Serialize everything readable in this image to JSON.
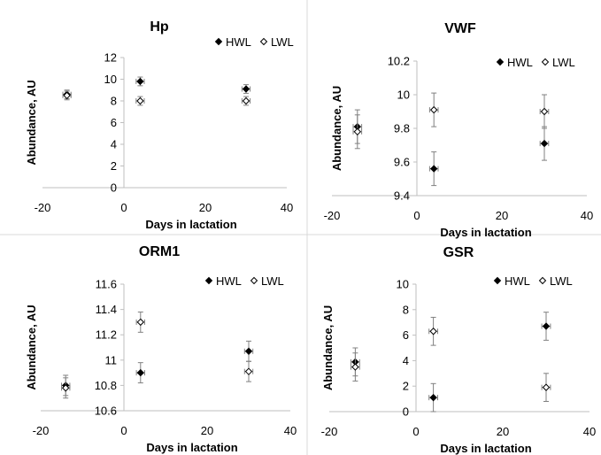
{
  "chart_data": [
    {
      "type": "scatter",
      "title": "Hp",
      "xlabel": "Days in lactation",
      "ylabel": "Abundance, AU",
      "xlim": [
        -20,
        40
      ],
      "ylim": [
        0,
        12
      ],
      "xticks": [
        -20,
        0,
        20,
        40
      ],
      "yticks": [
        0,
        2,
        4,
        6,
        8,
        10,
        12
      ],
      "ytick_labels": [
        "0",
        "2",
        "4",
        "6",
        "8",
        "10",
        "12"
      ],
      "grid": false,
      "legend": "top-right",
      "series": [
        {
          "name": "HWL",
          "marker": "filled-diamond",
          "points": [
            {
              "x": -14,
              "y": 8.6,
              "xerr": 1,
              "yerr": 0.4
            },
            {
              "x": 4,
              "y": 9.8,
              "xerr": 1,
              "yerr": 0.4
            },
            {
              "x": 30,
              "y": 9.1,
              "xerr": 1,
              "yerr": 0.4
            }
          ]
        },
        {
          "name": "LWL",
          "marker": "open-diamond",
          "points": [
            {
              "x": -14,
              "y": 8.5,
              "xerr": 1,
              "yerr": 0.4
            },
            {
              "x": 4,
              "y": 8.0,
              "xerr": 1,
              "yerr": 0.4
            },
            {
              "x": 30,
              "y": 8.0,
              "xerr": 1,
              "yerr": 0.4
            }
          ]
        }
      ]
    },
    {
      "type": "scatter",
      "title": "VWF",
      "xlabel": "Days in lactation",
      "ylabel": "Abundance, AU",
      "xlim": [
        -20,
        40
      ],
      "ylim": [
        9.4,
        10.2
      ],
      "xticks": [
        -20,
        0,
        20,
        40
      ],
      "yticks": [
        9.4,
        9.6,
        9.8,
        10,
        10.2
      ],
      "ytick_labels": [
        "9.4",
        "9.6",
        "9.8",
        "10",
        "10.2"
      ],
      "grid": false,
      "legend": "top-right",
      "series": [
        {
          "name": "HWL",
          "marker": "filled-diamond",
          "points": [
            {
              "x": -14,
              "y": 9.81,
              "xerr": 1,
              "yerr": 0.1
            },
            {
              "x": 4,
              "y": 9.56,
              "xerr": 1,
              "yerr": 0.1
            },
            {
              "x": 30,
              "y": 9.71,
              "xerr": 1,
              "yerr": 0.1
            }
          ]
        },
        {
          "name": "LWL",
          "marker": "open-diamond",
          "points": [
            {
              "x": -14,
              "y": 9.78,
              "xerr": 1,
              "yerr": 0.1
            },
            {
              "x": 4,
              "y": 9.91,
              "xerr": 1,
              "yerr": 0.1
            },
            {
              "x": 30,
              "y": 9.9,
              "xerr": 1,
              "yerr": 0.1
            }
          ]
        }
      ]
    },
    {
      "type": "scatter",
      "title": "ORM1",
      "xlabel": "Days in lactation",
      "ylabel": "Abundance, AU",
      "xlim": [
        -20,
        40
      ],
      "ylim": [
        10.6,
        11.6
      ],
      "xticks": [
        -20,
        0,
        20,
        40
      ],
      "yticks": [
        10.6,
        10.8,
        11,
        11.2,
        11.4,
        11.6
      ],
      "ytick_labels": [
        "10.6",
        "10.8",
        "11",
        "11.2",
        "11.4",
        "11.6"
      ],
      "grid": false,
      "legend": "top-right",
      "series": [
        {
          "name": "HWL",
          "marker": "filled-diamond",
          "points": [
            {
              "x": -14,
              "y": 10.8,
              "xerr": 1,
              "yerr": 0.08
            },
            {
              "x": 4,
              "y": 10.9,
              "xerr": 1,
              "yerr": 0.08
            },
            {
              "x": 30,
              "y": 11.07,
              "xerr": 1,
              "yerr": 0.08
            }
          ]
        },
        {
          "name": "LWL",
          "marker": "open-diamond",
          "points": [
            {
              "x": -14,
              "y": 10.78,
              "xerr": 1,
              "yerr": 0.08
            },
            {
              "x": 4,
              "y": 11.3,
              "xerr": 1,
              "yerr": 0.08
            },
            {
              "x": 30,
              "y": 10.91,
              "xerr": 1,
              "yerr": 0.08
            }
          ]
        }
      ]
    },
    {
      "type": "scatter",
      "title": "GSR",
      "xlabel": "Days in lactation",
      "ylabel": "Abundance, AU",
      "xlim": [
        -20,
        40
      ],
      "ylim": [
        0,
        10
      ],
      "xticks": [
        -20,
        0,
        20,
        40
      ],
      "yticks": [
        0,
        2,
        4,
        6,
        8,
        10
      ],
      "ytick_labels": [
        "0",
        "2",
        "4",
        "6",
        "8",
        "10"
      ],
      "grid": false,
      "legend": "top-right",
      "series": [
        {
          "name": "HWL",
          "marker": "filled-diamond",
          "points": [
            {
              "x": -14,
              "y": 3.9,
              "xerr": 1,
              "yerr": 1.1
            },
            {
              "x": 4,
              "y": 1.1,
              "xerr": 1,
              "yerr": 1.1
            },
            {
              "x": 30,
              "y": 6.7,
              "xerr": 1,
              "yerr": 1.1
            }
          ]
        },
        {
          "name": "LWL",
          "marker": "open-diamond",
          "points": [
            {
              "x": -14,
              "y": 3.5,
              "xerr": 1,
              "yerr": 1.1
            },
            {
              "x": 4,
              "y": 6.3,
              "xerr": 1,
              "yerr": 1.1
            },
            {
              "x": 30,
              "y": 1.9,
              "xerr": 1,
              "yerr": 1.1
            }
          ]
        }
      ]
    }
  ]
}
